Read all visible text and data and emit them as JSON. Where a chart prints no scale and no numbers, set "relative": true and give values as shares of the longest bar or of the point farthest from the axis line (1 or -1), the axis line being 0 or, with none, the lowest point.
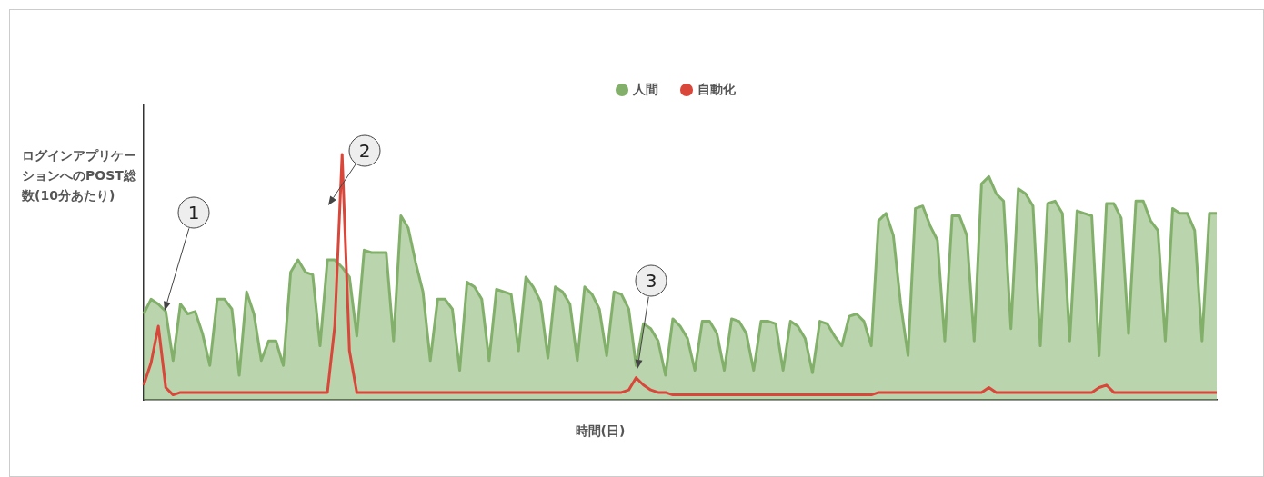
{
  "chart_data": {
    "type": "line",
    "relative": true,
    "ylabel": "ログインアプリケーションへのPOST総数(10分あたり)",
    "xlabel": "時間(日)",
    "legend": "top",
    "annotations": [
      "1",
      "2",
      "3"
    ],
    "categories": [
      null,
      null,
      null,
      null,
      null,
      null,
      null,
      null,
      null,
      null,
      null,
      null,
      null,
      null,
      null,
      null,
      null,
      null,
      null,
      null,
      null,
      null,
      null,
      null,
      null,
      null,
      null,
      null,
      null,
      null,
      null,
      null,
      null,
      null,
      null,
      null,
      null,
      null,
      null,
      null,
      null,
      null,
      null,
      null,
      null,
      null,
      null,
      null,
      null,
      null,
      null,
      null,
      null,
      null,
      null,
      null,
      null,
      null,
      null,
      null,
      null,
      null,
      null,
      null,
      null,
      null,
      null,
      null,
      null,
      null,
      null,
      null,
      null,
      null,
      null,
      null,
      null,
      null,
      null,
      null,
      null,
      null,
      null,
      null,
      null,
      null,
      null,
      null,
      null,
      null,
      null,
      null,
      null,
      null,
      null,
      null,
      null,
      null,
      null,
      null,
      null,
      null,
      null,
      null,
      null,
      null,
      null,
      null,
      null,
      null,
      null,
      null,
      null,
      null,
      null,
      null,
      null,
      null,
      null,
      null,
      null,
      null,
      null,
      null,
      null,
      null,
      null,
      null,
      null,
      null,
      null,
      null,
      null,
      null,
      null,
      null,
      null,
      null,
      null,
      null,
      null,
      null,
      null,
      null,
      null,
      null,
      null
    ],
    "series": [
      {
        "name": "人間",
        "type": "area",
        "color": "#82b06a",
        "values": [
          0.35,
          0.41,
          0.39,
          0.36,
          0.16,
          0.39,
          0.35,
          0.36,
          0.27,
          0.14,
          0.41,
          0.41,
          0.37,
          0.1,
          0.44,
          0.35,
          0.16,
          0.24,
          0.24,
          0.14,
          0.52,
          0.57,
          0.52,
          0.51,
          0.22,
          0.57,
          0.57,
          0.54,
          0.5,
          0.26,
          0.61,
          0.6,
          0.6,
          0.6,
          0.24,
          0.75,
          0.7,
          0.56,
          0.44,
          0.16,
          0.41,
          0.41,
          0.37,
          0.12,
          0.48,
          0.46,
          0.41,
          0.16,
          0.45,
          0.44,
          0.43,
          0.2,
          0.5,
          0.46,
          0.4,
          0.17,
          0.46,
          0.44,
          0.39,
          0.16,
          0.46,
          0.43,
          0.37,
          0.18,
          0.44,
          0.43,
          0.37,
          0.14,
          0.31,
          0.29,
          0.24,
          0.1,
          0.33,
          0.3,
          0.25,
          0.12,
          0.32,
          0.32,
          0.27,
          0.12,
          0.33,
          0.32,
          0.27,
          0.12,
          0.32,
          0.32,
          0.31,
          0.12,
          0.32,
          0.3,
          0.25,
          0.11,
          0.32,
          0.31,
          0.26,
          0.22,
          0.34,
          0.35,
          0.32,
          0.22,
          0.73,
          0.76,
          0.67,
          0.39,
          0.18,
          0.78,
          0.79,
          0.71,
          0.65,
          0.24,
          0.75,
          0.75,
          0.67,
          0.24,
          0.88,
          0.91,
          0.84,
          0.81,
          0.29,
          0.86,
          0.84,
          0.79,
          0.22,
          0.8,
          0.81,
          0.76,
          0.24,
          0.77,
          0.76,
          0.75,
          0.18,
          0.8,
          0.8,
          0.74,
          0.27,
          0.81,
          0.81,
          0.73,
          0.69,
          0.24,
          0.78,
          0.76,
          0.76,
          0.69,
          0.24,
          0.76,
          0.76
        ]
      },
      {
        "name": "自動化",
        "color": "#d9473a",
        "values": [
          0.06,
          0.15,
          0.3,
          0.05,
          0.02,
          0.03,
          0.03,
          0.03,
          0.03,
          0.03,
          0.03,
          0.03,
          0.03,
          0.03,
          0.03,
          0.03,
          0.03,
          0.03,
          0.03,
          0.03,
          0.03,
          0.03,
          0.03,
          0.03,
          0.03,
          0.03,
          0.3,
          1,
          0.2,
          0.03,
          0.03,
          0.03,
          0.03,
          0.03,
          0.03,
          0.03,
          0.03,
          0.03,
          0.03,
          0.03,
          0.03,
          0.03,
          0.03,
          0.03,
          0.03,
          0.03,
          0.03,
          0.03,
          0.03,
          0.03,
          0.03,
          0.03,
          0.03,
          0.03,
          0.03,
          0.03,
          0.03,
          0.03,
          0.03,
          0.03,
          0.03,
          0.03,
          0.03,
          0.03,
          0.03,
          0.03,
          0.04,
          0.09,
          0.06,
          0.04,
          0.03,
          0.03,
          0.02,
          0.02,
          0.02,
          0.02,
          0.02,
          0.02,
          0.02,
          0.02,
          0.02,
          0.02,
          0.02,
          0.02,
          0.02,
          0.02,
          0.02,
          0.02,
          0.02,
          0.02,
          0.02,
          0.02,
          0.02,
          0.02,
          0.02,
          0.02,
          0.02,
          0.02,
          0.02,
          0.02,
          0.03,
          0.03,
          0.03,
          0.03,
          0.03,
          0.03,
          0.03,
          0.03,
          0.03,
          0.03,
          0.03,
          0.03,
          0.03,
          0.03,
          0.03,
          0.05,
          0.03,
          0.03,
          0.03,
          0.03,
          0.03,
          0.03,
          0.03,
          0.03,
          0.03,
          0.03,
          0.03,
          0.03,
          0.03,
          0.03,
          0.05,
          0.06,
          0.03,
          0.03,
          0.03,
          0.03,
          0.03,
          0.03,
          0.03,
          0.03,
          0.03,
          0.03,
          0.03,
          0.03,
          0.03,
          0.03,
          0.03
        ]
      }
    ]
  }
}
